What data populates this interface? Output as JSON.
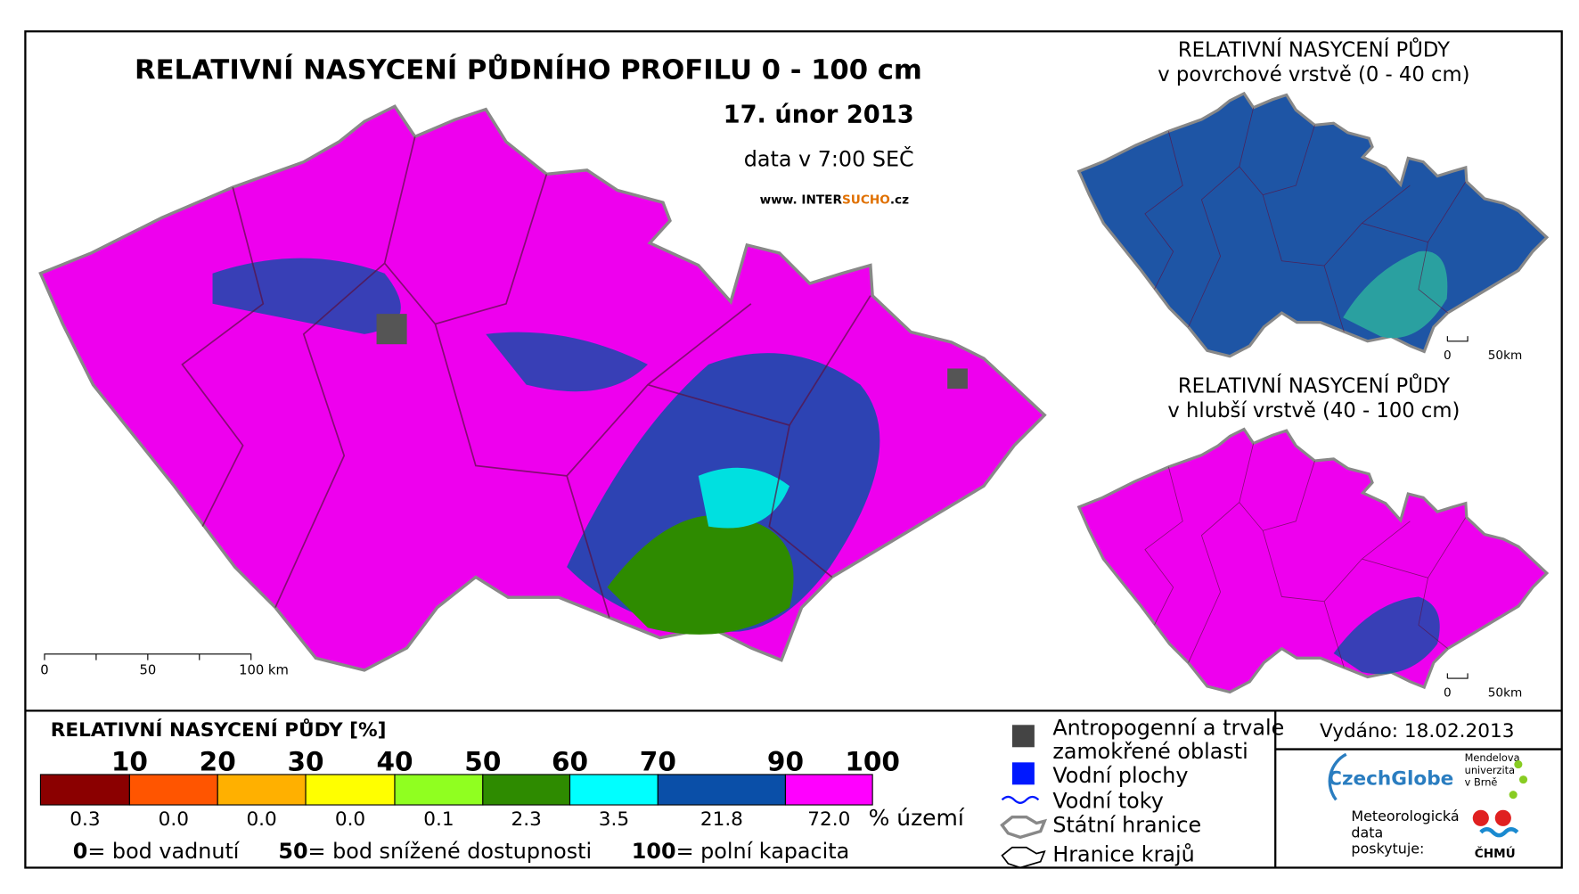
{
  "title": "RELATIVNÍ NASYCENÍ PŮDNÍHO PROFILU 0 - 100 cm",
  "date": "17. únor 2013",
  "data_time": "data v 7:00 SEČ",
  "website": {
    "prefix": "www. INTER",
    "highlight": "SUCHO",
    "suffix": ".cz"
  },
  "main_scale": [
    "0",
    "50",
    "100 km"
  ],
  "insets": [
    {
      "title": [
        "RELATIVNÍ NASYCENÍ PŮDY",
        "v povrchové vrstvě (0 - 40 cm)"
      ],
      "scale": [
        "0",
        "50km"
      ]
    },
    {
      "title": [
        "RELATIVNÍ NASYCENÍ PŮDY",
        "v hlubší vrstvě (40 - 100 cm)"
      ],
      "scale": [
        "0",
        "50km"
      ]
    }
  ],
  "legend": {
    "title": "RELATIVNÍ NASYCENÍ PŮDY [%]",
    "thresholds": [
      "10",
      "20",
      "30",
      "40",
      "50",
      "60",
      "70",
      "90",
      "100"
    ],
    "colors": [
      "#8b0000",
      "#ff5500",
      "#ffb000",
      "#ffff00",
      "#90ff20",
      "#2e8b00",
      "#00ffff",
      "#0a4fa8",
      "#ff00ff"
    ],
    "shares": [
      "0.3",
      "0.0",
      "0.0",
      "0.0",
      "0.1",
      "2.3",
      "3.5",
      "21.8",
      "72.0"
    ],
    "unit": "% území",
    "notes": [
      {
        "key": "0",
        "text": "= bod vadnutí"
      },
      {
        "key": "50",
        "text": "= bod snížené dostupnosti"
      },
      {
        "key": "100",
        "text": "= polní kapacita"
      }
    ]
  },
  "symbols": [
    "Antropogenní a trvale",
    "zamokřené oblasti",
    "Vodní plochy",
    "Vodní toky",
    "Státní hranice",
    "Hranice krajů"
  ],
  "issued": "Vydáno: 18.02.2013",
  "logos": {
    "czechglobe": "CzechGlobe",
    "mendel": [
      "Mendelova",
      "univerzita",
      "v Brně"
    ],
    "provider": [
      "Meteorologická",
      "data",
      "poskytuje:"
    ],
    "chmu": "ČHMÚ"
  }
}
